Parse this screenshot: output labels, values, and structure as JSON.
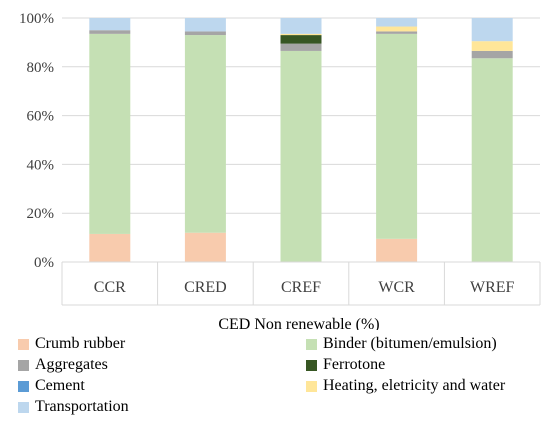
{
  "chart_data": {
    "type": "bar",
    "stacked": true,
    "categories": [
      "CCR",
      "CRED",
      "CREF",
      "WCR",
      "WREF"
    ],
    "xlabel": "CED Non renewable (%)",
    "ylim": [
      0,
      100
    ],
    "yticks": [
      "0%",
      "20%",
      "40%",
      "60%",
      "80%",
      "100%"
    ],
    "ytick_values": [
      0,
      20,
      40,
      60,
      80,
      100
    ],
    "gridlines": true,
    "legend_position": "bottom",
    "series": [
      {
        "name": "Crumb rubber",
        "color": "#F8CBAD",
        "values": [
          11.5,
          12.0,
          0.0,
          9.5,
          0.0
        ]
      },
      {
        "name": "Binder (bitumen/emulsion)",
        "color": "#C5E0B4",
        "values": [
          82.0,
          81.0,
          86.5,
          84.0,
          83.5
        ]
      },
      {
        "name": "Aggregates",
        "color": "#A5A5A5",
        "values": [
          1.5,
          1.5,
          3.0,
          1.0,
          3.0
        ]
      },
      {
        "name": "Ferrotone",
        "color": "#375623",
        "values": [
          0.0,
          0.0,
          3.5,
          0.0,
          0.0
        ]
      },
      {
        "name": "Cement",
        "color": "#5B9BD5",
        "values": [
          0.0,
          0.0,
          0.0,
          0.0,
          0.0
        ]
      },
      {
        "name": "Heating, eletricity and water",
        "color": "#FFE699",
        "values": [
          0.0,
          0.0,
          0.5,
          2.0,
          4.0
        ]
      },
      {
        "name": "Transportation",
        "color": "#BDD7EE",
        "values": [
          5.0,
          5.5,
          6.5,
          3.5,
          9.5
        ]
      }
    ]
  }
}
